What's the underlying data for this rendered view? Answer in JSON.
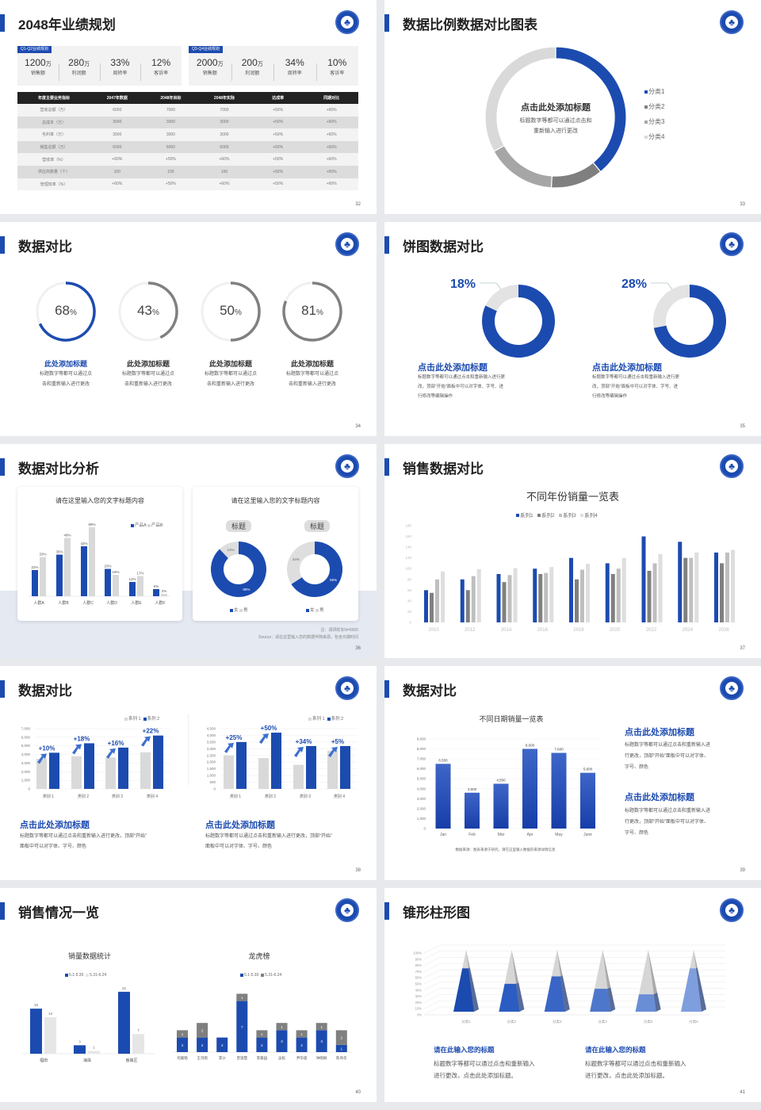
{
  "colors": {
    "accent": "#1c4bb0",
    "gray": "#7f7f7f",
    "mid_gray": "#a6a6a6",
    "light_gray": "#d9d9d9"
  },
  "slide32": {
    "title": "2048年业绩规划",
    "page": "32",
    "panels": [
      {
        "tag": "Q1-Q2业绩规划",
        "kpis": [
          {
            "value": "1200",
            "unit": "万",
            "label": "销售额"
          },
          {
            "value": "280",
            "unit": "万",
            "label": "利润额"
          },
          {
            "value": "33%",
            "unit": "",
            "label": "周转率"
          },
          {
            "value": "12%",
            "unit": "",
            "label": "客诉率"
          }
        ]
      },
      {
        "tag": "Q3-Q4业绩规划",
        "kpis": [
          {
            "value": "2000",
            "unit": "万",
            "label": "销售额"
          },
          {
            "value": "200",
            "unit": "万",
            "label": "利润额"
          },
          {
            "value": "34%",
            "unit": "",
            "label": "周转率"
          },
          {
            "value": "10%",
            "unit": "",
            "label": "客诉率"
          }
        ]
      }
    ],
    "table": {
      "headers": [
        "年度主要业务指标",
        "2047年数据",
        "2048年目标",
        "2048年实际",
        "达成率",
        "同期对比"
      ],
      "rows": [
        [
          "营收总额（万）",
          "6000",
          "7000",
          "7000",
          "+50%",
          "+60%"
        ],
        [
          "总成本（万）",
          "3000",
          "3000",
          "3000",
          "+50%",
          "+60%"
        ],
        [
          "毛利率（万）",
          "3000",
          "3000",
          "3000",
          "+50%",
          "+60%"
        ],
        [
          "销售总额（万）",
          "6000",
          "6000",
          "6000",
          "+50%",
          "+60%"
        ],
        [
          "营收率（%）",
          "+60%",
          "+50%",
          "+60%",
          "+50%",
          "+60%"
        ],
        [
          "供应商数量（个）",
          "100",
          "100",
          "100",
          "+50%",
          "+60%"
        ],
        [
          "管理效率（%）",
          "+60%",
          "+50%",
          "+60%",
          "+50%",
          "+60%"
        ]
      ]
    }
  },
  "slide33": {
    "title": "数据比例数据对比图表",
    "page": "33",
    "center_title": "点击此处添加标题",
    "center_text": [
      "标题数字等都可以通过点击和",
      "重新输入进行更改"
    ]
  },
  "slide34": {
    "title": "数据对比",
    "page": "34",
    "items": [
      {
        "value": "68",
        "unit": "%",
        "heading": "此处添加标题",
        "text": [
          "标题数字等都可以通过点",
          "击和重新输入进行更改"
        ]
      },
      {
        "value": "43",
        "unit": "%",
        "heading": "此处添加标题",
        "text": [
          "标题数字等都可以通过点",
          "击和重新输入进行更改"
        ]
      },
      {
        "value": "50",
        "unit": "%",
        "heading": "此处添加标题",
        "text": [
          "标题数字等都可以通过点",
          "击和重新输入进行更改"
        ]
      },
      {
        "value": "81",
        "unit": "%",
        "heading": "此处添加标题",
        "text": [
          "标题数字等都可以通过点",
          "击和重新输入进行更改"
        ]
      }
    ]
  },
  "slide35": {
    "title": "饼图数据对比",
    "page": "35",
    "items": [
      {
        "value": "18%",
        "heading": "点击此处添加标题",
        "text": [
          "标题数字等都可以通过点击和重新输入进行更",
          "改，顶部“开始”面板中可以对字体、字号、进",
          "行修改等编辑操作"
        ]
      },
      {
        "value": "28%",
        "heading": "点击此处添加标题",
        "text": [
          "标题数字等都可以通过点击和重新输入进行更",
          "改，顶部“开始”面板中可以对字体、字号、进",
          "行修改等编辑操作"
        ]
      }
    ]
  },
  "slide36": {
    "title": "数据对比分析",
    "page": "36",
    "card2_title": "请在这里输入您的文字标题内容",
    "footnote": [
      "注：调研样本N=5000",
      "Source：请在这里输入您的数据伴随来源，包含日期时间"
    ]
  },
  "slide37": {
    "title": "销售数据对比",
    "page": "37"
  },
  "slide38": {
    "title": "数据对比",
    "page": "38",
    "blocks": [
      {
        "heading": "点击此处添加标题",
        "text": [
          "标题数字等都可以通过点击和重新输入进行更改，顶部“开始”",
          "面板中可以对字体、字号、颜色"
        ]
      },
      {
        "heading": "点击此处添加标题",
        "text": [
          "标题数字等都可以通过点击和重新输入进行更改，顶部“开始”",
          "面板中可以对字体、字号、颜色"
        ]
      }
    ]
  },
  "slide39": {
    "title": "数据对比",
    "page": "39",
    "blocks": [
      {
        "heading": "点击此处添加标题",
        "text": [
          "标题数字等都可以通过点击和重新输入进",
          "行更改，顶部“开始”面板中可以对字体、",
          "字号、颜色"
        ]
      },
      {
        "heading": "点击此处添加标题",
        "text": [
          "标题数字等都可以通过点击和重新输入进",
          "行更改，顶部“开始”面板中可以对字体、",
          "字号、颜色"
        ]
      }
    ]
  },
  "slide40": {
    "title": "销售情况一览",
    "page": "40"
  },
  "slide41": {
    "title": "锥形柱形图",
    "page": "41",
    "blocks": [
      {
        "heading": "请在此输入您的标题",
        "text": [
          "标题数字等都可以通过点击和重新输入",
          "进行更改，点击此处添加标题。"
        ]
      },
      {
        "heading": "请在此输入您的标题",
        "text": [
          "标题数字等都可以通过点击和重新输入",
          "进行更改，点击此处添加标题。"
        ]
      }
    ]
  },
  "chart_data": [
    {
      "type": "pie",
      "categories": [
        "分类1",
        "分类2",
        "分类3",
        "分类4"
      ],
      "values": [
        39,
        12,
        16,
        33
      ],
      "colors": [
        "#1c4bb0",
        "#7f7f7f",
        "#a6a6a6",
        "#d9d9d9"
      ],
      "legend": "right"
    },
    {
      "type": "bar",
      "title": "请在这里输入您的文字标题内容",
      "categories": [
        "人群A",
        "人群B",
        "人群C",
        "人群D",
        "人群E",
        "人群F"
      ],
      "series": [
        {
          "name": "产品A",
          "values": [
            22,
            35,
            42,
            23,
            12,
            6
          ]
        },
        {
          "name": "产品B",
          "values": [
            33,
            49,
            58,
            18,
            17,
            2
          ]
        }
      ],
      "unit": "%",
      "legend": "top-right"
    },
    {
      "type": "pie",
      "title": "标题",
      "categories": [
        "女",
        "男"
      ],
      "values": [
        88,
        12
      ],
      "labels": [
        "88%",
        "12%"
      ],
      "legend": "bottom"
    },
    {
      "type": "pie",
      "title": "标题",
      "categories": [
        "女",
        "男"
      ],
      "values": [
        66,
        34
      ],
      "labels": [
        "66%",
        "34%"
      ],
      "legend": "bottom"
    },
    {
      "type": "bar",
      "title": "不同年份销量一览表",
      "categories": [
        "2010",
        "2012",
        "2014",
        "2016",
        "2018",
        "2020",
        "2022",
        "2024",
        "2026"
      ],
      "series": [
        {
          "name": "系列1",
          "values": [
            60,
            80,
            90,
            100,
            120,
            110,
            160,
            150,
            130
          ]
        },
        {
          "name": "系列2",
          "values": [
            55,
            60,
            75,
            90,
            80,
            90,
            96,
            120,
            110
          ]
        },
        {
          "name": "系列3",
          "values": [
            80,
            86,
            88,
            92,
            98,
            100,
            110,
            120,
            130
          ]
        },
        {
          "name": "系列4",
          "values": [
            95,
            99,
            101,
            103,
            109,
            120,
            127,
            130,
            135
          ]
        }
      ],
      "ylim": [
        0,
        180
      ],
      "yticks": [
        "0",
        "20",
        "40",
        "60",
        "80",
        "100",
        "120",
        "140",
        "160",
        "180"
      ],
      "legend": "top"
    },
    {
      "type": "bar",
      "categories": [
        "类别 1",
        "类别 2",
        "类别 3",
        "类别 4"
      ],
      "series": [
        {
          "name": "系列 1",
          "values": [
            3500,
            3800,
            3650,
            4250
          ]
        },
        {
          "name": "系列 2",
          "values": [
            4200,
            5300,
            4800,
            6200
          ]
        }
      ],
      "annotations": [
        "+10%",
        "+18%",
        "+16%",
        "+22%"
      ],
      "ylim": [
        0,
        7000
      ],
      "yticks": [
        "0",
        "1,000",
        "2,000",
        "3,000",
        "4,000",
        "5,000",
        "6,000",
        "7,000"
      ],
      "legend": "top-right"
    },
    {
      "type": "bar",
      "categories": [
        "类别 1",
        "类别 2",
        "类别 3",
        "类别 4"
      ],
      "series": [
        {
          "name": "系列 1",
          "values": [
            2500,
            2300,
            1800,
            2850
          ]
        },
        {
          "name": "系列 2",
          "values": [
            3500,
            4200,
            3200,
            3200
          ]
        }
      ],
      "annotations": [
        "+25%",
        "+50%",
        "+34%",
        "+5%"
      ],
      "ylim": [
        0,
        4500
      ],
      "yticks": [
        "0",
        "500",
        "1,000",
        "1,500",
        "2,000",
        "2,500",
        "3,000",
        "3,500",
        "4,000",
        "4,500"
      ],
      "legend": "top-right"
    },
    {
      "type": "bar",
      "title": "不同日期销量一览表",
      "categories": [
        "Jan",
        "Feb",
        "Mar",
        "Apr",
        "May",
        "June"
      ],
      "values": [
        6500,
        3600,
        4500,
        8000,
        7600,
        5600
      ],
      "labels": [
        "6,500",
        "3,600",
        "4,500",
        "8,000",
        "7,600",
        "5,600"
      ],
      "ylim": [
        0,
        9000
      ],
      "yticks": [
        "0",
        "1,000",
        "2,000",
        "3,000",
        "4,000",
        "5,000",
        "6,000",
        "7,000",
        "8,000",
        "9,000"
      ],
      "note": "数据来源：图表来源于研究，请在这里输入数据的来源详情信息"
    },
    {
      "type": "bar",
      "title": "销量数据统计",
      "categories": [
        "福田",
        "海珠",
        "番禺区"
      ],
      "series": [
        {
          "name": "5.1-5.30",
          "values": [
            16,
            3,
            22
          ]
        },
        {
          "name": "5.31-6.24",
          "values": [
            13,
            1,
            7
          ]
        }
      ],
      "legend": "top"
    },
    {
      "type": "bar",
      "stacked": true,
      "title": "龙虎榜",
      "categories": [
        "何嘉铭",
        "王鸿雨",
        "李沙",
        "曾淑慧",
        "李嘉园",
        "吴松",
        "尹华俊",
        "钟雨桐",
        "陈伟华"
      ],
      "series": [
        {
          "name": "5.1-5.30",
          "values": [
            2,
            2,
            2,
            7,
            2,
            3,
            2,
            3,
            1
          ]
        },
        {
          "name": "5.31-6.24",
          "values": [
            1,
            2,
            0,
            1,
            1,
            1,
            1,
            1,
            2
          ]
        }
      ],
      "legend": "top"
    },
    {
      "type": "bar",
      "shape": "pyramid",
      "categories": [
        "分类1",
        "分类2",
        "分类3",
        "分类4",
        "分类5",
        "分类6"
      ],
      "values": [
        70,
        45,
        57,
        37,
        28,
        70
      ],
      "ylim": [
        0,
        100
      ],
      "yticks": [
        "0%",
        "10%",
        "20%",
        "30%",
        "40%",
        "50%",
        "60%",
        "70%",
        "80%",
        "90%",
        "100%"
      ]
    }
  ]
}
